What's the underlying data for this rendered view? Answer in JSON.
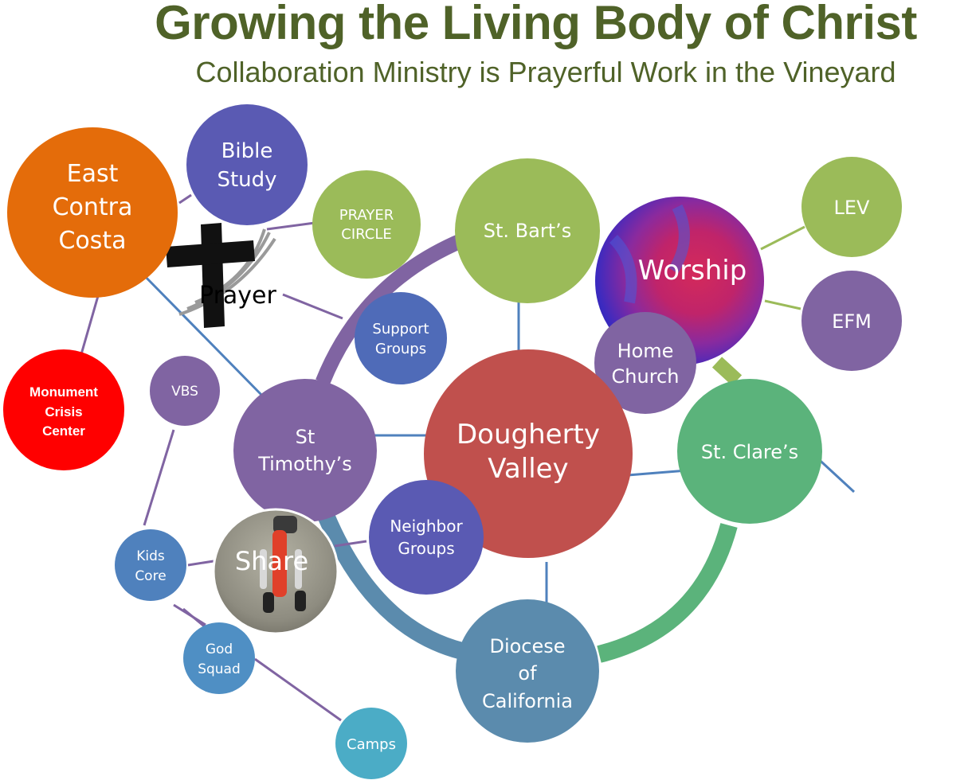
{
  "header": {
    "title": "Growing the Living Body of Christ",
    "subtitle": "Collaboration Ministry is Prayerful Work in the Vineyard"
  },
  "nodes": {
    "east_contra_costa": {
      "lines": [
        "East",
        "Contra",
        "Costa"
      ],
      "color": "#e46c0a"
    },
    "bible_study": {
      "lines": [
        "Bible",
        "Study"
      ],
      "color": "#5a5ab3"
    },
    "prayer_circle": {
      "lines": [
        "PRAYER",
        "CIRCLE"
      ],
      "color": "#9bbb59"
    },
    "st_barts": {
      "lines": [
        "St. Bart’s"
      ],
      "color": "#9bbb59"
    },
    "worship": {
      "lines": [
        "Worship"
      ],
      "color": "#7b2fa8"
    },
    "lev": {
      "lines": [
        "LEV"
      ],
      "color": "#9bbb59"
    },
    "efm": {
      "lines": [
        "EFM"
      ],
      "color": "#8064a2"
    },
    "home_church": {
      "lines": [
        "Home",
        "Church"
      ],
      "color": "#8064a2"
    },
    "support_groups": {
      "lines": [
        "Support",
        "Groups"
      ],
      "color": "#4f6bb8"
    },
    "monument_crisis_center": {
      "lines": [
        "Monument",
        "Crisis",
        "Center"
      ],
      "color": "#ff0000"
    },
    "vbs": {
      "lines": [
        "VBS"
      ],
      "color": "#8064a2"
    },
    "st_timothys": {
      "lines": [
        "St",
        "Timothy’s"
      ],
      "color": "#8064a2"
    },
    "dougherty_valley": {
      "lines": [
        "Dougherty",
        "Valley"
      ],
      "color": "#c0504d"
    },
    "st_clares": {
      "lines": [
        "St. Clare’s"
      ],
      "color": "#5bb37b"
    },
    "neighbor_groups": {
      "lines": [
        "Neighbor",
        "Groups"
      ],
      "color": "#5a5ab3"
    },
    "share": {
      "lines": [
        "Share"
      ],
      "color": "#9a9a8c"
    },
    "kids_core": {
      "lines": [
        "Kids",
        "Core"
      ],
      "color": "#4f81bd"
    },
    "god_squad": {
      "lines": [
        "God",
        "Squad"
      ],
      "color": "#4f8fc4"
    },
    "camps": {
      "lines": [
        "Camps"
      ],
      "color": "#4bacc6"
    },
    "diocese_of_california": {
      "lines": [
        "Diocese",
        "of",
        "California"
      ],
      "color": "#5b8bad"
    }
  },
  "prayer_graphic": {
    "label": "Prayer"
  },
  "colors": {
    "ring_purple": "#8064a2",
    "ring_green": "#5bb37b",
    "ring_teal": "#5b8bad",
    "connector_blue": "#4f81bd",
    "connector_purple": "#8064a2",
    "connector_green": "#9bbb59"
  }
}
